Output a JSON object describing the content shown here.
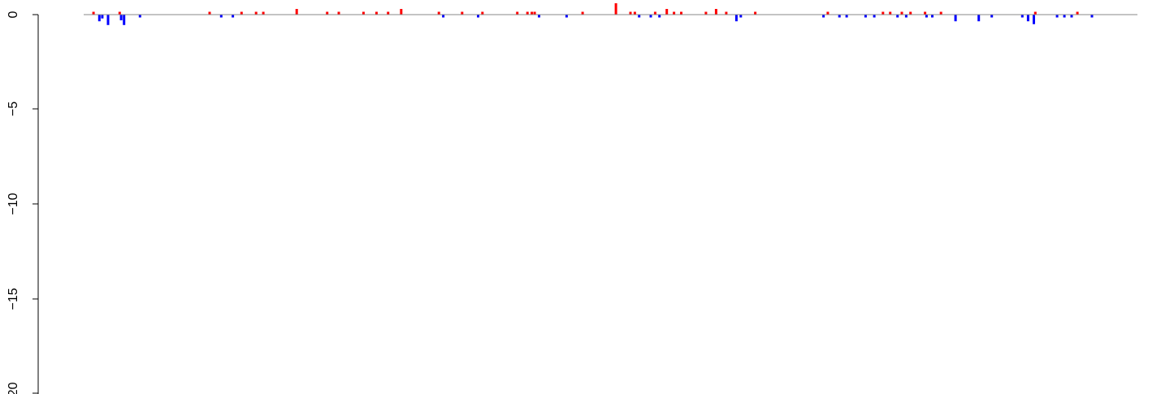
{
  "chart_data": {
    "type": "bar",
    "title": "",
    "xlabel": "",
    "ylabel": "",
    "ylim": [
      -20,
      0.7
    ],
    "grid": false,
    "legend": "none",
    "y_ticks": [
      0,
      -5,
      -10,
      -15,
      -20
    ],
    "y_tick_labels": [
      "0",
      "−5",
      "−10",
      "−15",
      "−20"
    ],
    "baseline": 0,
    "colors": {
      "positive": "#ff0000",
      "negative": "#0000ff",
      "baseline": "#888888",
      "axis": "#000000"
    },
    "index_range": [
      0,
      360
    ],
    "series": [
      {
        "values": [
          [
            2,
            0.15
          ],
          [
            4,
            -0.35
          ],
          [
            5,
            -0.2
          ],
          [
            7,
            -0.55
          ],
          [
            11,
            0.15
          ],
          [
            11.5,
            -0.3
          ],
          [
            12.5,
            -0.55
          ],
          [
            18,
            -0.15
          ],
          [
            42,
            0.15
          ],
          [
            46,
            -0.15
          ],
          [
            50,
            -0.15
          ],
          [
            53,
            0.15
          ],
          [
            58,
            0.15
          ],
          [
            60.5,
            0.15
          ],
          [
            72,
            0.3
          ],
          [
            82.5,
            0.15
          ],
          [
            86.5,
            0.15
          ],
          [
            95,
            0.15
          ],
          [
            99.5,
            0.15
          ],
          [
            103.5,
            0.15
          ],
          [
            108,
            0.3
          ],
          [
            121,
            0.15
          ],
          [
            122.5,
            -0.15
          ],
          [
            129,
            0.15
          ],
          [
            134.5,
            -0.15
          ],
          [
            136,
            0.15
          ],
          [
            148,
            0.15
          ],
          [
            151.5,
            0.15
          ],
          [
            153,
            0.15
          ],
          [
            154,
            0.15
          ],
          [
            155.5,
            -0.15
          ],
          [
            165,
            -0.15
          ],
          [
            170.5,
            0.15
          ],
          [
            182,
            0.6
          ],
          [
            187,
            0.15
          ],
          [
            188.5,
            0.15
          ],
          [
            190,
            -0.15
          ],
          [
            194,
            -0.15
          ],
          [
            195.5,
            0.15
          ],
          [
            197,
            -0.15
          ],
          [
            199.5,
            0.3
          ],
          [
            202,
            0.15
          ],
          [
            204.5,
            0.15
          ],
          [
            213,
            0.15
          ],
          [
            216.5,
            0.3
          ],
          [
            220,
            0.15
          ],
          [
            223.5,
            -0.35
          ],
          [
            225,
            -0.15
          ],
          [
            230,
            0.15
          ],
          [
            253.5,
            -0.15
          ],
          [
            255,
            0.15
          ],
          [
            259,
            -0.15
          ],
          [
            261.5,
            -0.15
          ],
          [
            268,
            -0.15
          ],
          [
            271,
            -0.15
          ],
          [
            274,
            0.15
          ],
          [
            276.5,
            0.15
          ],
          [
            279,
            -0.15
          ],
          [
            280.5,
            0.15
          ],
          [
            282,
            -0.15
          ],
          [
            283.5,
            0.15
          ],
          [
            288.5,
            0.15
          ],
          [
            289,
            -0.15
          ],
          [
            291,
            -0.15
          ],
          [
            294,
            0.15
          ],
          [
            299,
            -0.35
          ],
          [
            307,
            -0.35
          ],
          [
            311.5,
            -0.15
          ],
          [
            322,
            -0.15
          ],
          [
            324,
            -0.35
          ],
          [
            326,
            -0.5
          ],
          [
            326.5,
            0.15
          ],
          [
            334,
            -0.15
          ],
          [
            336.5,
            -0.15
          ],
          [
            339,
            -0.15
          ],
          [
            341,
            0.15
          ],
          [
            346,
            -0.15
          ]
        ]
      }
    ]
  }
}
